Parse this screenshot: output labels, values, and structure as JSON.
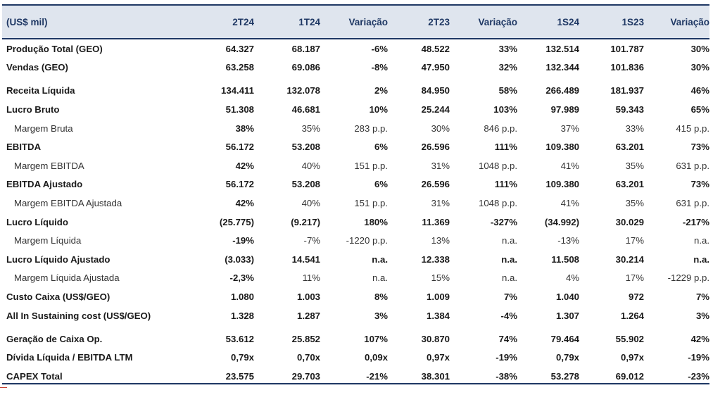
{
  "header": [
    "(US$ mil)",
    "2T24",
    "1T24",
    "Variação",
    "2T23",
    "Variação",
    "1S24",
    "1S23",
    "Variação"
  ],
  "rows": [
    {
      "type": "bold",
      "gap": false,
      "cells": [
        "Produção Total (GEO)",
        "64.327",
        "68.187",
        "-6%",
        "48.522",
        "33%",
        "132.514",
        "101.787",
        "30%"
      ]
    },
    {
      "type": "bold",
      "gap": false,
      "cells": [
        "Vendas (GEO)",
        "63.258",
        "69.086",
        "-8%",
        "47.950",
        "32%",
        "132.344",
        "101.836",
        "30%"
      ]
    },
    {
      "type": "bold",
      "gap": true,
      "cells": [
        "Receita Líquida",
        "134.411",
        "132.078",
        "2%",
        "84.950",
        "58%",
        "266.489",
        "181.937",
        "46%"
      ]
    },
    {
      "type": "bold",
      "gap": false,
      "cells": [
        "Lucro Bruto",
        "51.308",
        "46.681",
        "10%",
        "25.244",
        "103%",
        "97.989",
        "59.343",
        "65%"
      ]
    },
    {
      "type": "sub",
      "gap": false,
      "cells": [
        "Margem Bruta",
        "38%",
        "35%",
        "283 p.p.",
        "30%",
        "846 p.p.",
        "37%",
        "33%",
        "415 p.p."
      ]
    },
    {
      "type": "bold",
      "gap": false,
      "cells": [
        "EBITDA",
        "56.172",
        "53.208",
        "6%",
        "26.596",
        "111%",
        "109.380",
        "63.201",
        "73%"
      ]
    },
    {
      "type": "sub",
      "gap": false,
      "cells": [
        "Margem EBITDA",
        "42%",
        "40%",
        "151 p.p.",
        "31%",
        "1048 p.p.",
        "41%",
        "35%",
        "631 p.p."
      ]
    },
    {
      "type": "bold",
      "gap": false,
      "cells": [
        "EBITDA Ajustado",
        "56.172",
        "53.208",
        "6%",
        "26.596",
        "111%",
        "109.380",
        "63.201",
        "73%"
      ]
    },
    {
      "type": "sub",
      "gap": false,
      "cells": [
        "Margem EBITDA Ajustada",
        "42%",
        "40%",
        "151 p.p.",
        "31%",
        "1048 p.p.",
        "41%",
        "35%",
        "631 p.p."
      ]
    },
    {
      "type": "bold",
      "gap": false,
      "cells": [
        "Lucro Líquido",
        "(25.775)",
        "(9.217)",
        "180%",
        "11.369",
        "-327%",
        "(34.992)",
        "30.029",
        "-217%"
      ]
    },
    {
      "type": "sub",
      "gap": false,
      "cells": [
        "Margem Líquida",
        "-19%",
        "-7%",
        "-1220 p.p.",
        "13%",
        "n.a.",
        "-13%",
        "17%",
        "n.a."
      ]
    },
    {
      "type": "bold",
      "gap": false,
      "cells": [
        "Lucro Líquido Ajustado",
        "(3.033)",
        "14.541",
        "n.a.",
        "12.338",
        "n.a.",
        "11.508",
        "30.214",
        "n.a."
      ]
    },
    {
      "type": "sub",
      "gap": false,
      "cells": [
        "Margem Líquida Ajustada",
        "-2,3%",
        "11%",
        "n.a.",
        "15%",
        "n.a.",
        "4%",
        "17%",
        "-1229 p.p."
      ]
    },
    {
      "type": "bold",
      "gap": false,
      "cells": [
        "Custo Caixa  (US$/GEO)",
        "1.080",
        "1.003",
        "8%",
        "1.009",
        "7%",
        "1.040",
        "972",
        "7%"
      ]
    },
    {
      "type": "bold",
      "gap": false,
      "cells": [
        "All In Sustaining cost (US$/GEO)",
        "1.328",
        "1.287",
        "3%",
        "1.384",
        "-4%",
        "1.307",
        "1.264",
        "3%"
      ]
    },
    {
      "type": "bold",
      "gap": true,
      "cells": [
        "Geração de Caixa Op.",
        "53.612",
        "25.852",
        "107%",
        "30.870",
        "74%",
        "79.464",
        "55.902",
        "42%"
      ]
    },
    {
      "type": "bold",
      "gap": false,
      "cells": [
        "Dívida Líquida / EBITDA LTM",
        "0,79x",
        "0,70x",
        "0,09x",
        "0,97x",
        "-19%",
        "0,79x",
        "0,97x",
        "-19%"
      ]
    },
    {
      "type": "bold",
      "gap": false,
      "cells": [
        "CAPEX Total",
        "23.575",
        "29.703",
        "-21%",
        "38.301",
        "-38%",
        "53.278",
        "69.012",
        "-23%"
      ]
    }
  ]
}
